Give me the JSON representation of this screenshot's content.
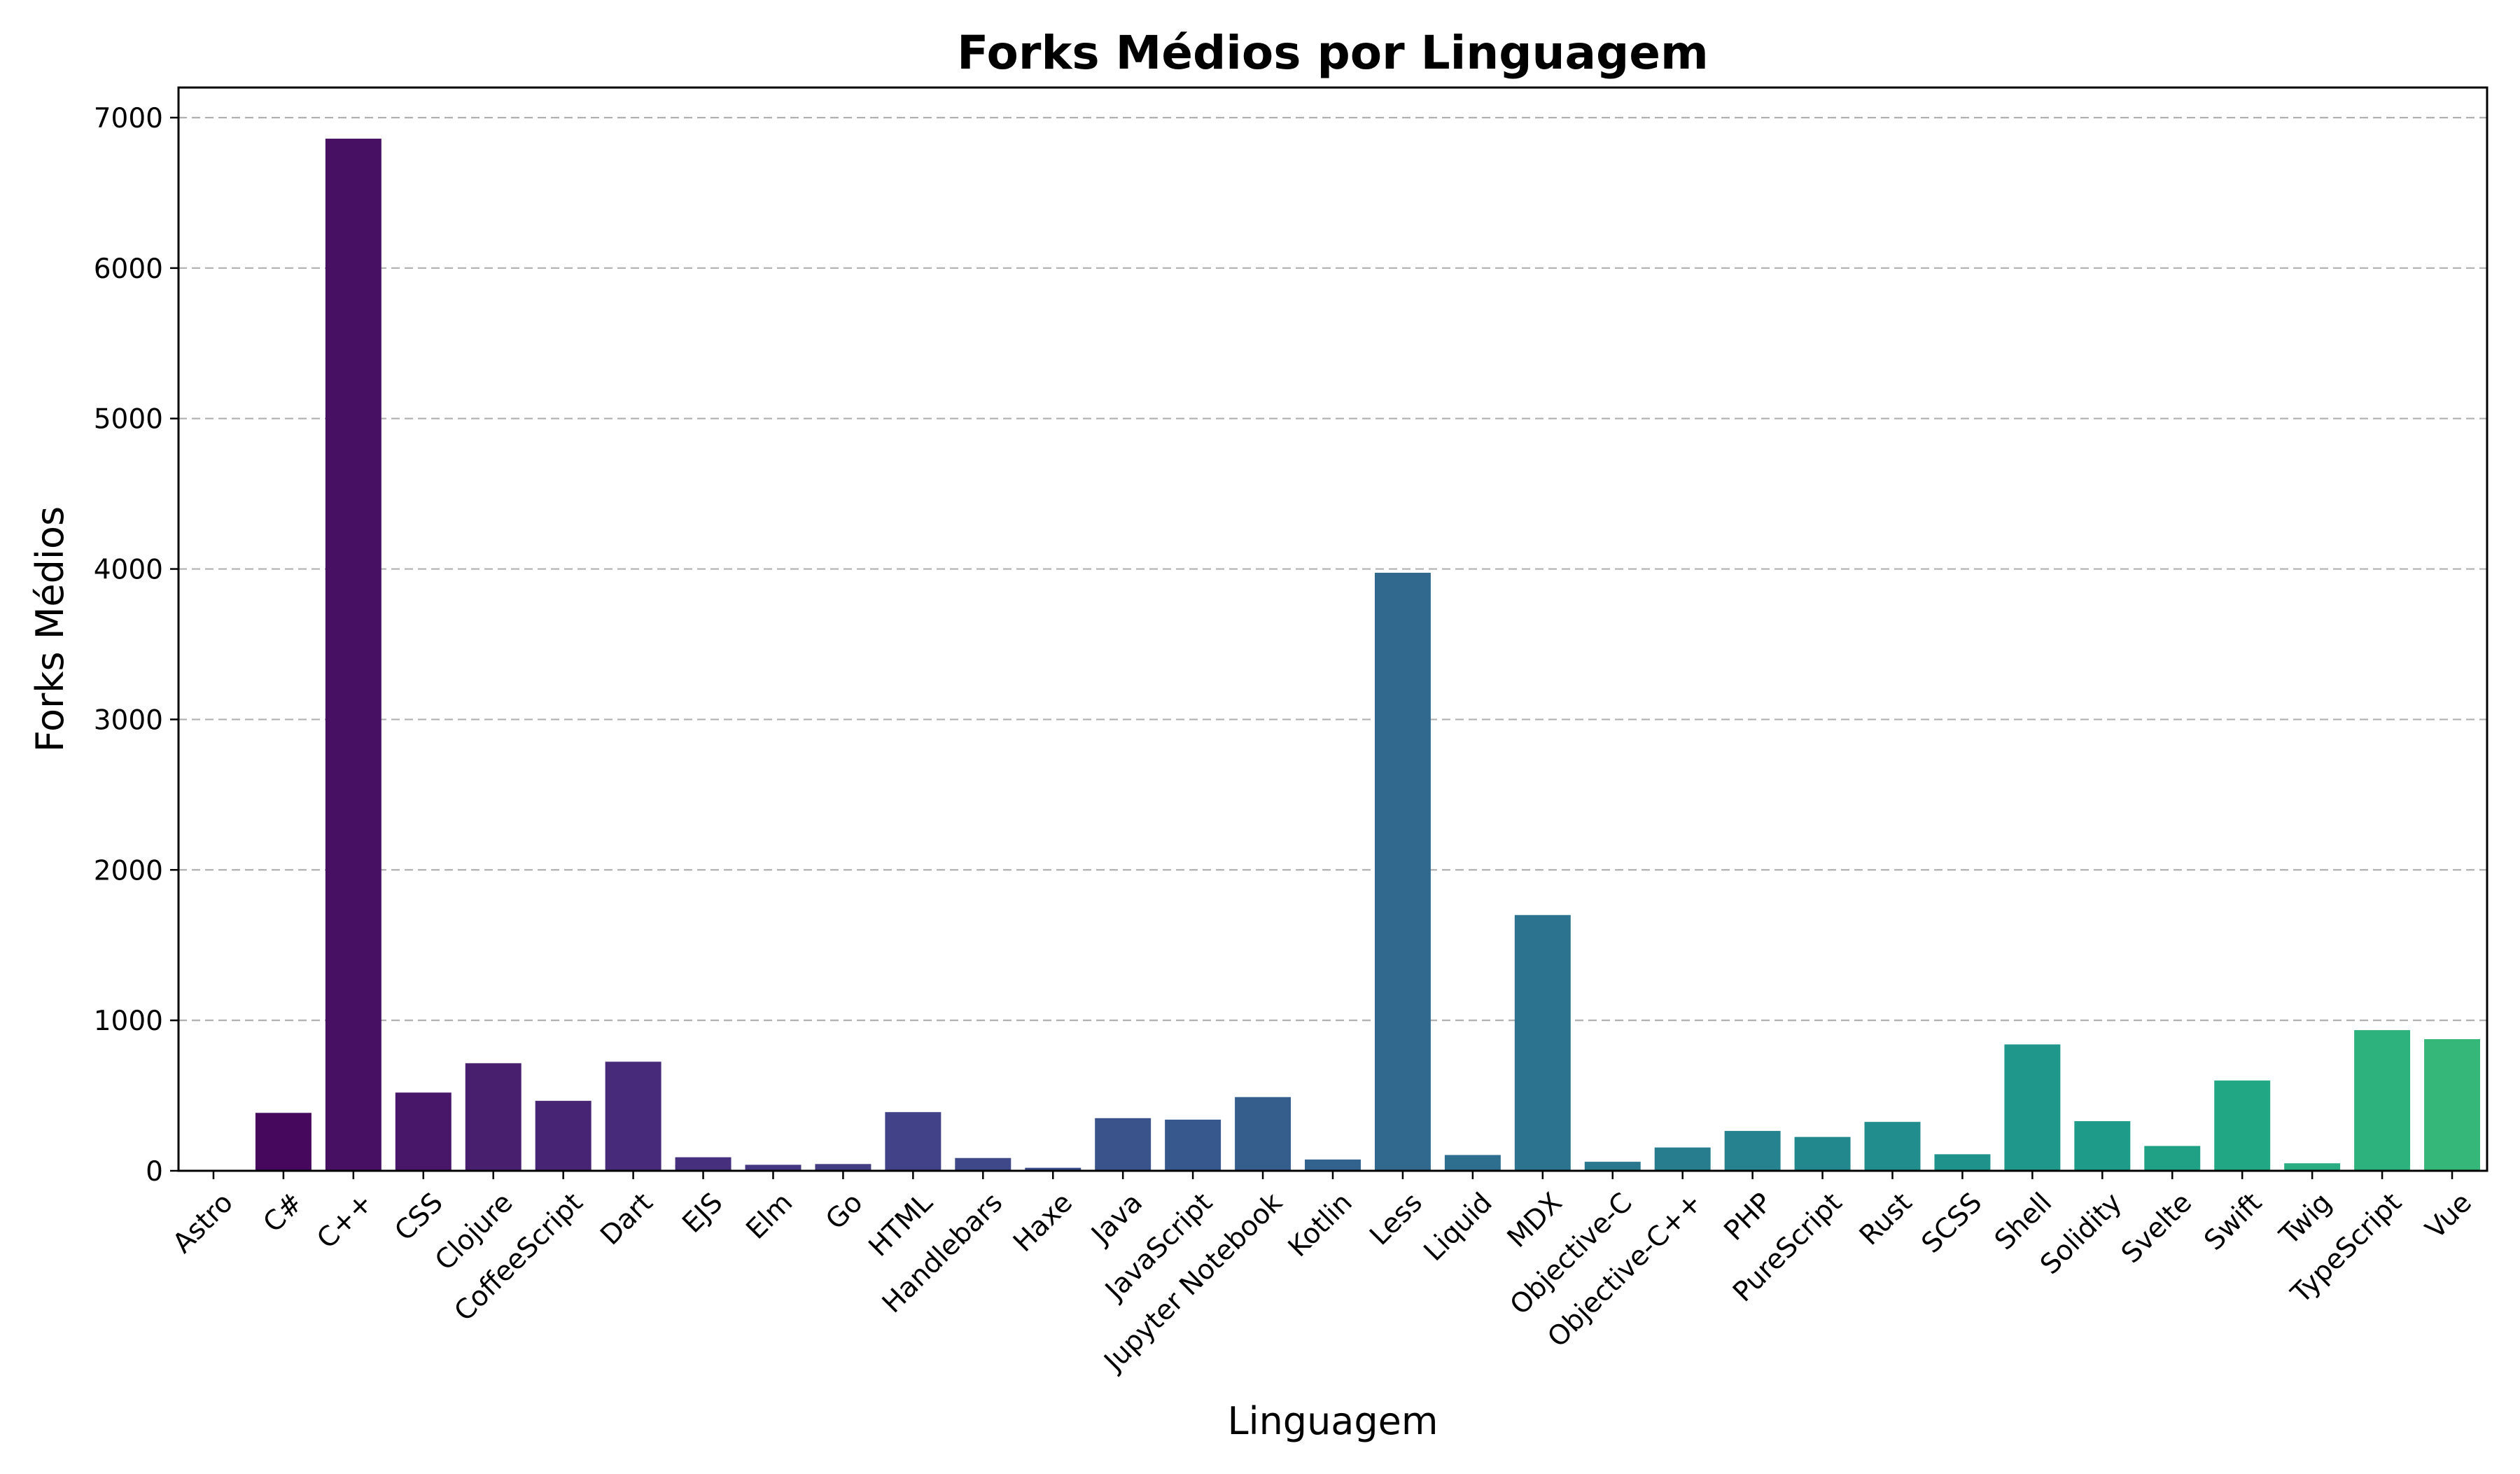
{
  "chart_data": {
    "type": "bar",
    "title": "Forks Médios por Linguagem",
    "xlabel": "Linguagem",
    "ylabel": "Forks Médios",
    "ylim": [
      0,
      7200
    ],
    "yticks": [
      0,
      1000,
      2000,
      3000,
      4000,
      5000,
      6000,
      7000
    ],
    "grid": "y-dashed",
    "categories": [
      "Astro",
      "C#",
      "C++",
      "CSS",
      "Clojure",
      "CoffeeScript",
      "Dart",
      "EJS",
      "Elm",
      "Go",
      "HTML",
      "Handlebars",
      "Haxe",
      "Java",
      "JavaScript",
      "Jupyter Notebook",
      "Kotlin",
      "Less",
      "Liquid",
      "MDX",
      "Objective-C",
      "Objective-C++",
      "PHP",
      "PureScript",
      "Rust",
      "SCSS",
      "Shell",
      "Solidity",
      "Svelte",
      "Swift",
      "Twig",
      "TypeScript",
      "Vue"
    ],
    "values": [
      5,
      385,
      6860,
      520,
      715,
      465,
      725,
      90,
      40,
      45,
      390,
      85,
      20,
      350,
      340,
      490,
      75,
      3975,
      105,
      1700,
      60,
      155,
      265,
      225,
      325,
      110,
      840,
      330,
      165,
      600,
      50,
      935,
      875
    ],
    "colormap": "viridis",
    "colors": [
      "#440154",
      "#46085c",
      "#471063",
      "#481769",
      "#481e6f",
      "#482475",
      "#472a7a",
      "#46307e",
      "#453781",
      "#433d84",
      "#414287",
      "#3f4889",
      "#3c4d8a",
      "#3a538b",
      "#37588c",
      "#355e8d",
      "#32638e",
      "#30688e",
      "#2e6e8e",
      "#2b738e",
      "#29788e",
      "#277d8e",
      "#25828e",
      "#23888e",
      "#218d8c",
      "#1f928c",
      "#1f978b",
      "#1f9c89",
      "#20a186",
      "#22a785",
      "#27ad81",
      "#2db27d",
      "#35b779"
    ]
  }
}
